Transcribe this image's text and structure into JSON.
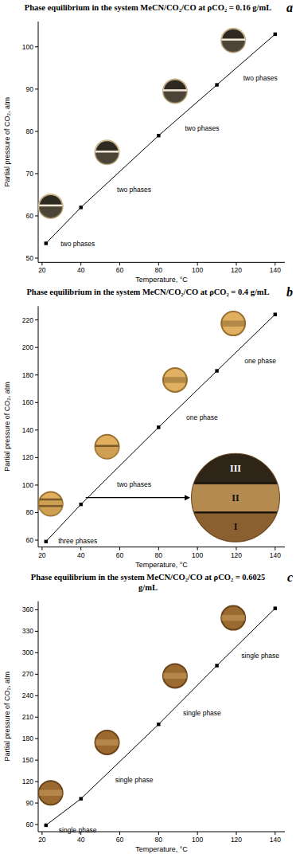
{
  "chart_data": [
    {
      "type": "line",
      "title": "Phase equilibrium in the system MeCN/CO₂/CO at ρCO₂ = 0.16 g/mL",
      "panel_label": "a",
      "x_label": "Temperature, °C",
      "y_label": "Partial pressure of CO₂, atm",
      "x": [
        22,
        40,
        80,
        110,
        140
      ],
      "values": [
        53.5,
        62,
        79,
        91,
        103
      ],
      "color": "#000000",
      "marker": "square",
      "line_style": "solid",
      "xlim": [
        18,
        145
      ],
      "ylim": [
        49,
        106
      ],
      "xticks": [
        20,
        40,
        60,
        80,
        100,
        120,
        140
      ],
      "yticks": [
        50,
        60,
        70,
        80,
        90,
        100
      ],
      "grid": false,
      "annotations": [
        "two phases",
        "two phases",
        "two phases",
        "two phases"
      ]
    },
    {
      "type": "line",
      "title": "Phase equilibrium in the system MeCN/CO₂/CO at ρCO₂ = 0.4 g/mL",
      "panel_label": "b",
      "x_label": "Temperature, °C",
      "y_label": "Partial pressure of CO₂, atm",
      "x": [
        22,
        40,
        80,
        110,
        140
      ],
      "values": [
        59,
        86,
        142,
        183,
        224
      ],
      "color": "#000000",
      "marker": "square",
      "line_style": "solid",
      "xlim": [
        18,
        145
      ],
      "ylim": [
        55,
        230
      ],
      "xticks": [
        20,
        40,
        60,
        80,
        100,
        120,
        140
      ],
      "yticks": [
        60,
        80,
        100,
        120,
        140,
        160,
        180,
        200,
        220
      ],
      "grid": false,
      "annotations": [
        "three phases",
        "two phases",
        "one phase",
        "one phase"
      ],
      "inset_labels": [
        "III",
        "II",
        "I"
      ]
    },
    {
      "type": "line",
      "title": "Phase equilibrium in the system MeCN/CO₂/CO at ρCO₂ = 0.6025 g/mL",
      "panel_label": "c",
      "x_label": "Temperature, °C",
      "y_label": "Partial pressure of CO₂, atm",
      "x": [
        22,
        40,
        80,
        110,
        140
      ],
      "values": [
        59,
        96,
        200,
        282,
        362
      ],
      "color": "#000000",
      "marker": "square",
      "line_style": "solid",
      "xlim": [
        18,
        145
      ],
      "ylim": [
        50,
        372
      ],
      "xticks": [
        20,
        40,
        60,
        80,
        100,
        120,
        140
      ],
      "yticks": [
        60,
        90,
        120,
        150,
        180,
        210,
        240,
        270,
        300,
        330,
        360
      ],
      "grid": false,
      "annotations": [
        "single phase",
        "single phase",
        "single phase",
        "single phase"
      ]
    }
  ]
}
